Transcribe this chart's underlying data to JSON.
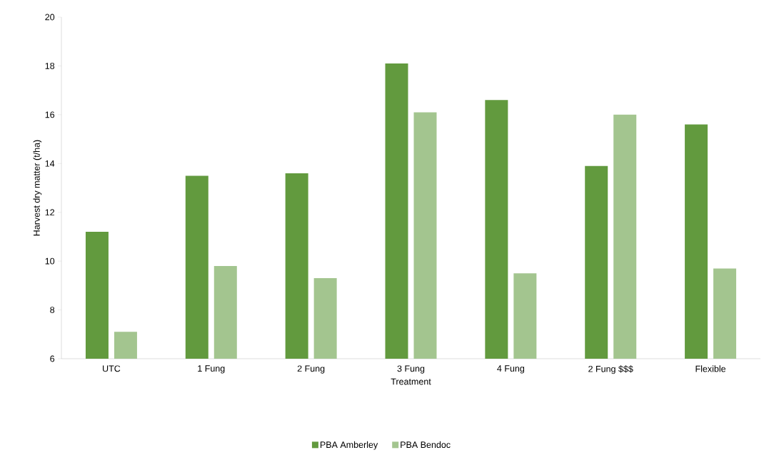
{
  "chart_data": {
    "type": "bar",
    "xlabel": "Treatment",
    "ylabel": "Harvest dry matter (t/ha)",
    "categories": [
      "UTC",
      "1 Fung",
      "2 Fung",
      "3 Fung",
      "4 Fung",
      "2 Fung $$$",
      "Flexible"
    ],
    "series": [
      {
        "name": "PBA Amberley",
        "color": "#629a3e",
        "values": [
          11.2,
          13.5,
          13.6,
          18.1,
          16.6,
          13.9,
          15.6
        ]
      },
      {
        "name": "PBA Bendoc",
        "color": "#a3c58f",
        "values": [
          7.1,
          9.8,
          9.3,
          16.1,
          9.5,
          16.0,
          9.7
        ]
      }
    ],
    "ylim": [
      6,
      20
    ],
    "yticks": [
      6,
      8,
      10,
      12,
      14,
      16,
      18,
      20
    ],
    "legend": "bottom"
  }
}
